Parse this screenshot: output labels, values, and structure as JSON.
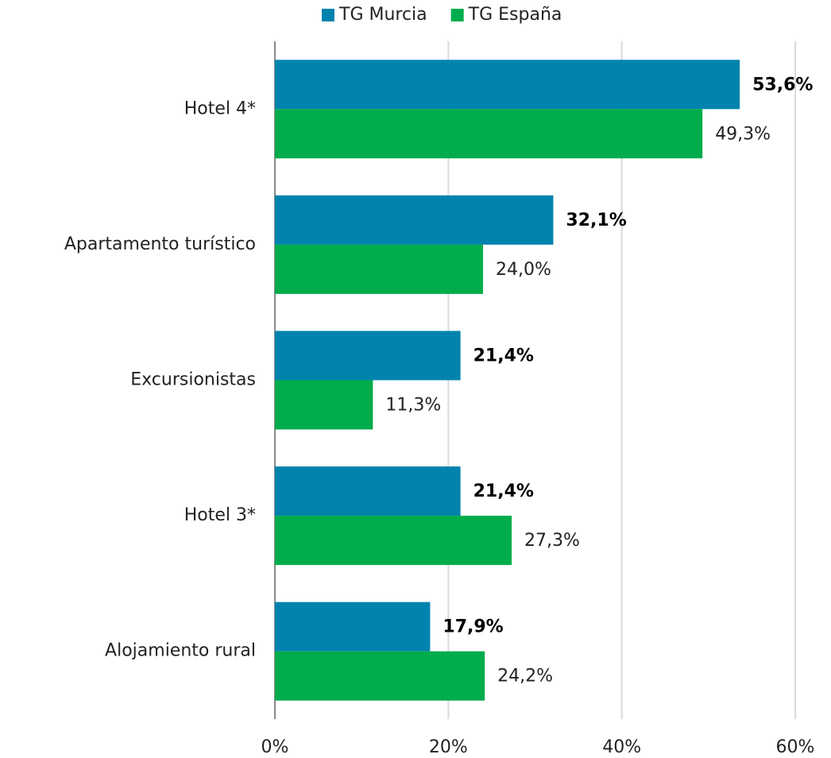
{
  "chart_data": {
    "type": "bar",
    "orientation": "horizontal",
    "categories": [
      "Hotel 4*",
      "Apartamento turístico",
      "Excursionistas",
      "Hotel 3*",
      "Alojamiento rural"
    ],
    "series": [
      {
        "name": "TG Murcia",
        "color": "#0083ad",
        "values": [
          53.6,
          32.1,
          21.4,
          21.4,
          17.9
        ],
        "value_labels": [
          "53,6%",
          "32,1%",
          "21,4%",
          "21,4%",
          "17,9%"
        ]
      },
      {
        "name": "TG España",
        "color": "#00ac4b",
        "values": [
          49.3,
          24.0,
          11.3,
          27.3,
          24.2
        ],
        "value_labels": [
          "49,3%",
          "24,0%",
          "11,3%",
          "27,3%",
          "24,2%"
        ]
      }
    ],
    "xlim": [
      0,
      60
    ],
    "xticks": [
      {
        "value": 0,
        "label": "0%"
      },
      {
        "value": 20,
        "label": "20%"
      },
      {
        "value": 40,
        "label": "40%"
      },
      {
        "value": 60,
        "label": "60%"
      }
    ],
    "grid": true,
    "legend": "top"
  }
}
